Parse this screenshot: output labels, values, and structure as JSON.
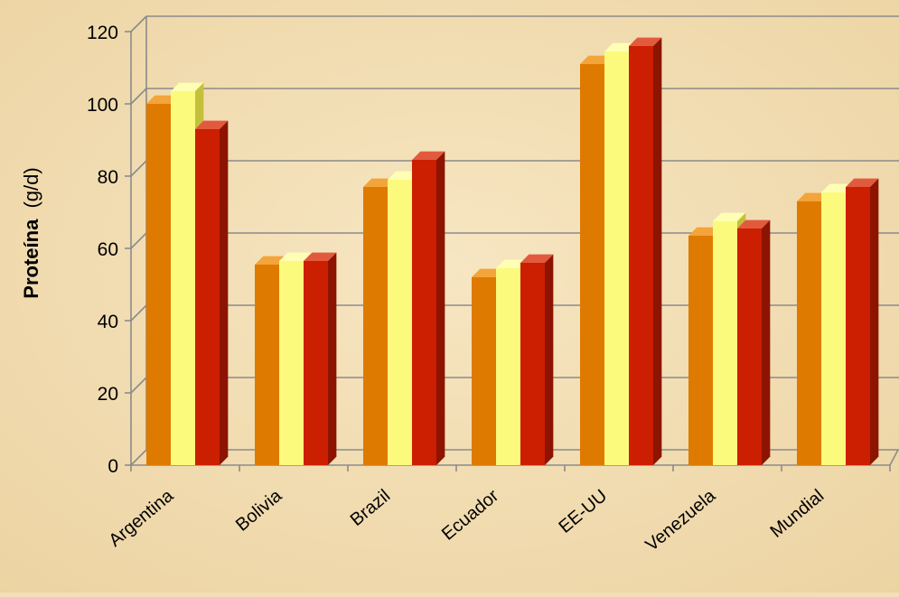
{
  "chart_data": {
    "type": "bar",
    "categories": [
      "Argentina",
      "Bolivia",
      "Brazil",
      "Ecuador",
      "EE-UU",
      "Venezuela",
      "Mundial"
    ],
    "series": [
      {
        "values": [
          100,
          55.5,
          77,
          52,
          111,
          63.5,
          73
        ]
      },
      {
        "values": [
          103.5,
          56.5,
          79,
          54.5,
          114.5,
          67.5,
          75.5
        ]
      },
      {
        "values": [
          93,
          56.5,
          84.5,
          56,
          116,
          65.5,
          77
        ]
      }
    ],
    "ylabel_bold": "Proteína",
    "ylabel_unit": "(g/d)",
    "yticks": [
      0,
      20,
      40,
      60,
      80,
      100,
      120
    ],
    "ylim": [
      0,
      120
    ],
    "grid": true,
    "colors": {
      "series": [
        "#de7a00",
        "#fcfa7c",
        "#cc1e00"
      ],
      "top": [
        "#f3a43a",
        "#feffb4",
        "#e25a3e"
      ],
      "side": [
        "#9a4e00",
        "#c4c03c",
        "#8c1400"
      ],
      "background": "#f3dfb6",
      "grid": "#8b8b8b"
    }
  }
}
